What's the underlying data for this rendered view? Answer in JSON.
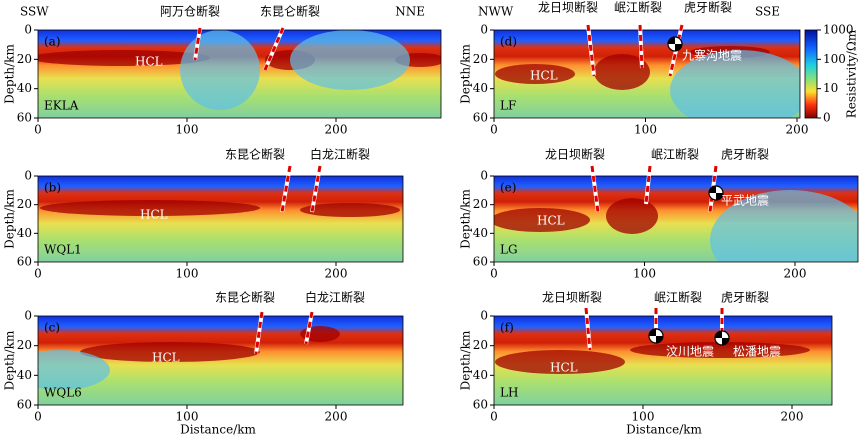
{
  "panels": [
    {
      "label": "(a)",
      "line": "EKLA",
      "dirs": [
        "SSW",
        "NNE"
      ],
      "faults": [
        "阿万仓断裂",
        "东昆仑断裂"
      ],
      "layer": "HCL",
      "quakes": [],
      "xticks": [
        0,
        100,
        200
      ],
      "yticks": [
        0,
        20,
        40,
        60
      ]
    },
    {
      "label": "(b)",
      "line": "WQL1",
      "dirs": [],
      "faults": [
        "东昆仑断裂",
        "白龙江断裂"
      ],
      "layer": "HCL",
      "quakes": [],
      "xticks": [
        0,
        100,
        200
      ],
      "yticks": [
        0,
        20,
        40,
        60
      ]
    },
    {
      "label": "(c)",
      "line": "WQL6",
      "dirs": [],
      "faults": [
        "东昆仑断裂",
        "白龙江断裂"
      ],
      "layer": "HCL",
      "quakes": [],
      "xticks": [
        0,
        100,
        200
      ],
      "yticks": [
        0,
        20,
        40,
        60
      ]
    },
    {
      "label": "(d)",
      "line": "LF",
      "dirs": [
        "NWW",
        "SSE"
      ],
      "faults": [
        "龙日坝断裂",
        "岷江断裂",
        "虎牙断裂"
      ],
      "layer": "HCL",
      "quakes": [
        "九寨沟地震"
      ],
      "xticks": [
        0,
        100,
        200
      ],
      "yticks": [
        0,
        20,
        40,
        60
      ]
    },
    {
      "label": "(e)",
      "line": "LG",
      "dirs": [],
      "faults": [
        "龙日坝断裂",
        "岷江断裂",
        "虎牙断裂"
      ],
      "layer": "HCL",
      "quakes": [
        "平武地震"
      ],
      "xticks": [
        0,
        100,
        200
      ],
      "yticks": [
        0,
        20,
        40,
        60
      ]
    },
    {
      "label": "(f)",
      "line": "LH",
      "dirs": [],
      "faults": [
        "龙日坝断裂",
        "岷江断裂",
        "虎牙断裂"
      ],
      "layer": "HCL",
      "quakes": [
        "汶川地震",
        "松潘地震"
      ],
      "xticks": [
        0,
        100,
        200
      ],
      "yticks": [
        0,
        20,
        40,
        60
      ]
    }
  ],
  "y_label": "Depth/km",
  "x_label": "Distance/km",
  "colorbar": {
    "label": "Resistivity/Ωm",
    "ticks": [
      1000,
      100,
      10,
      0
    ]
  }
}
